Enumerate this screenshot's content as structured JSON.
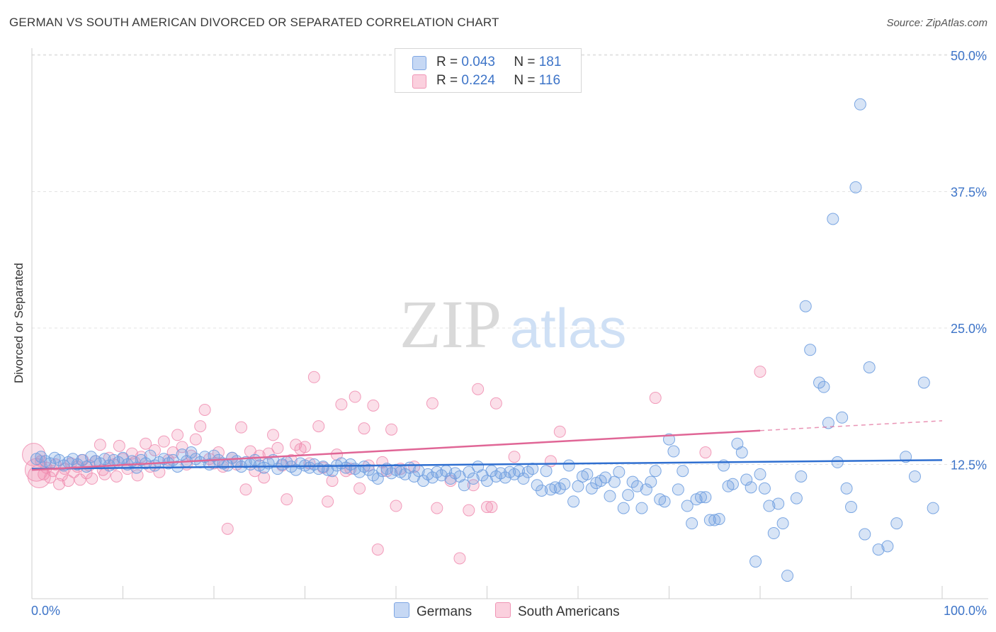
{
  "title": "GERMAN VS SOUTH AMERICAN DIVORCED OR SEPARATED CORRELATION CHART",
  "source": "Source: ZipAtlas.com",
  "watermark": {
    "zip": "ZIP",
    "atlas": "atlas"
  },
  "legend": {
    "germans": {
      "r_label": "R =",
      "r_value": "0.043",
      "n_label": "N =",
      "n_value": "181"
    },
    "south_americans": {
      "r_label": "R =",
      "r_value": "0.224",
      "n_label": "N =",
      "n_value": "116"
    }
  },
  "bottom_legend": {
    "germans": "Germans",
    "south_americans": "South Americans"
  },
  "chart_data": {
    "type": "scatter",
    "ylabel": "Divorced or Separated",
    "x_tick_labels": [
      "0.0%",
      "100.0%"
    ],
    "y_tick_labels": [
      "12.5%",
      "25.0%",
      "37.5%",
      "50.0%"
    ],
    "y_ticks": [
      12.5,
      25.0,
      37.5,
      50.0
    ],
    "xlim": [
      0,
      100
    ],
    "ylim": [
      0,
      50
    ],
    "grid": "horizontal dashed",
    "colors": {
      "germans": "#6f9fe0",
      "germans_line": "#2f6fd0",
      "south_americans": "#f08db0",
      "south_americans_line": "#e06696"
    },
    "series": [
      {
        "name": "Germans",
        "trend": {
          "x0": 0,
          "y0": 12.1,
          "x1": 100,
          "y1": 12.9
        },
        "points": [
          [
            0.5,
            13.0
          ],
          [
            1,
            13.2
          ],
          [
            1.5,
            12.8
          ],
          [
            2,
            12.6
          ],
          [
            2.5,
            13.1
          ],
          [
            3,
            12.9
          ],
          [
            3.5,
            12.4
          ],
          [
            4,
            12.7
          ],
          [
            4.5,
            13.0
          ],
          [
            5,
            12.5
          ],
          [
            5.5,
            12.9
          ],
          [
            6,
            12.3
          ],
          [
            6.5,
            13.2
          ],
          [
            7,
            12.8
          ],
          [
            7.5,
            12.6
          ],
          [
            8,
            13.0
          ],
          [
            8.5,
            12.4
          ],
          [
            9,
            12.9
          ],
          [
            9.5,
            12.7
          ],
          [
            10,
            13.1
          ],
          [
            10.5,
            12.5
          ],
          [
            11,
            12.8
          ],
          [
            11.5,
            12.2
          ],
          [
            12,
            12.9
          ],
          [
            12.5,
            12.6
          ],
          [
            13,
            13.3
          ],
          [
            13.5,
            12.4
          ],
          [
            14,
            12.7
          ],
          [
            14.5,
            13.0
          ],
          [
            15,
            12.6
          ],
          [
            15.5,
            12.9
          ],
          [
            16,
            12.3
          ],
          [
            16.5,
            13.4
          ],
          [
            17,
            12.8
          ],
          [
            17.5,
            13.6
          ],
          [
            18,
            13.0
          ],
          [
            18.5,
            12.7
          ],
          [
            19,
            13.2
          ],
          [
            19.5,
            12.5
          ],
          [
            20,
            13.3
          ],
          [
            20.5,
            12.9
          ],
          [
            21,
            12.6
          ],
          [
            21.5,
            12.4
          ],
          [
            22,
            13.1
          ],
          [
            22.5,
            12.8
          ],
          [
            23,
            12.3
          ],
          [
            23.5,
            12.7
          ],
          [
            24,
            12.5
          ],
          [
            24.5,
            12.9
          ],
          [
            25,
            12.4
          ],
          [
            25.5,
            12.2
          ],
          [
            26,
            12.6
          ],
          [
            26.5,
            12.9
          ],
          [
            27,
            12.1
          ],
          [
            27.5,
            12.5
          ],
          [
            28,
            12.7
          ],
          [
            28.5,
            12.3
          ],
          [
            29,
            12.0
          ],
          [
            29.5,
            12.6
          ],
          [
            30,
            12.4
          ],
          [
            30.5,
            12.2
          ],
          [
            31,
            12.5
          ],
          [
            31.5,
            12.1
          ],
          [
            32,
            12.3
          ],
          [
            32.5,
            12.0
          ],
          [
            33,
            11.9
          ],
          [
            33.5,
            12.4
          ],
          [
            34,
            12.6
          ],
          [
            34.5,
            12.2
          ],
          [
            35,
            12.5
          ],
          [
            35.5,
            12.1
          ],
          [
            36,
            11.8
          ],
          [
            36.5,
            12.3
          ],
          [
            37,
            12.0
          ],
          [
            37.5,
            11.5
          ],
          [
            38,
            11.2
          ],
          [
            38.5,
            11.9
          ],
          [
            39,
            12.1
          ],
          [
            39.5,
            11.7
          ],
          [
            40,
            12.0
          ],
          [
            40.5,
            11.8
          ],
          [
            41,
            11.6
          ],
          [
            41.5,
            12.2
          ],
          [
            42,
            11.4
          ],
          [
            42.5,
            11.9
          ],
          [
            43,
            11.0
          ],
          [
            43.5,
            11.6
          ],
          [
            44,
            11.3
          ],
          [
            44.5,
            11.8
          ],
          [
            45,
            11.5
          ],
          [
            45.5,
            11.9
          ],
          [
            46,
            11.2
          ],
          [
            46.5,
            11.7
          ],
          [
            47,
            11.4
          ],
          [
            47.5,
            10.6
          ],
          [
            48,
            11.8
          ],
          [
            48.5,
            11.2
          ],
          [
            49,
            12.3
          ],
          [
            49.5,
            11.5
          ],
          [
            50,
            11.0
          ],
          [
            50.5,
            11.9
          ],
          [
            51,
            11.4
          ],
          [
            51.5,
            11.7
          ],
          [
            52,
            11.3
          ],
          [
            52.5,
            11.8
          ],
          [
            53,
            11.6
          ],
          [
            53.5,
            11.9
          ],
          [
            54,
            11.2
          ],
          [
            54.5,
            11.8
          ],
          [
            55,
            12.1
          ],
          [
            55.5,
            10.6
          ],
          [
            56,
            10.1
          ],
          [
            56.5,
            11.9
          ],
          [
            57,
            10.2
          ],
          [
            57.5,
            10.4
          ],
          [
            58,
            10.3
          ],
          [
            58.5,
            10.7
          ],
          [
            59,
            12.4
          ],
          [
            59.5,
            9.1
          ],
          [
            60,
            10.5
          ],
          [
            60.5,
            11.4
          ],
          [
            61,
            11.6
          ],
          [
            61.5,
            10.3
          ],
          [
            62,
            10.8
          ],
          [
            62.5,
            11.0
          ],
          [
            63,
            11.3
          ],
          [
            63.5,
            9.6
          ],
          [
            64,
            10.9
          ],
          [
            64.5,
            11.8
          ],
          [
            65,
            8.5
          ],
          [
            65.5,
            9.7
          ],
          [
            66,
            10.9
          ],
          [
            66.5,
            10.5
          ],
          [
            67,
            8.5
          ],
          [
            67.5,
            10.2
          ],
          [
            68,
            10.9
          ],
          [
            68.5,
            11.9
          ],
          [
            69,
            9.3
          ],
          [
            69.5,
            9.1
          ],
          [
            70,
            14.8
          ],
          [
            70.5,
            13.7
          ],
          [
            71,
            10.2
          ],
          [
            71.5,
            11.9
          ],
          [
            72,
            8.7
          ],
          [
            72.5,
            7.1
          ],
          [
            73,
            9.3
          ],
          [
            73.5,
            9.5
          ],
          [
            74,
            9.5
          ],
          [
            74.5,
            7.4
          ],
          [
            75,
            7.4
          ],
          [
            75.5,
            7.5
          ],
          [
            76,
            12.4
          ],
          [
            76.5,
            10.5
          ],
          [
            77,
            10.7
          ],
          [
            77.5,
            14.4
          ],
          [
            78,
            13.6
          ],
          [
            78.5,
            11.1
          ],
          [
            79,
            10.4
          ],
          [
            79.5,
            3.6
          ],
          [
            80,
            11.6
          ],
          [
            80.5,
            10.3
          ],
          [
            81,
            8.7
          ],
          [
            81.5,
            6.2
          ],
          [
            82,
            8.9
          ],
          [
            82.5,
            7.1
          ],
          [
            83,
            2.3
          ],
          [
            84,
            9.4
          ],
          [
            84.5,
            11.4
          ],
          [
            85,
            27.0
          ],
          [
            85.5,
            23.0
          ],
          [
            86.5,
            20.0
          ],
          [
            87,
            19.6
          ],
          [
            87.5,
            16.3
          ],
          [
            88,
            35.0
          ],
          [
            88.5,
            12.7
          ],
          [
            89,
            16.8
          ],
          [
            89.5,
            10.3
          ],
          [
            90,
            8.6
          ],
          [
            90.5,
            37.9
          ],
          [
            91,
            45.5
          ],
          [
            91.5,
            6.1
          ],
          [
            92,
            21.4
          ],
          [
            93,
            4.7
          ],
          [
            94,
            5.0
          ],
          [
            95,
            7.1
          ],
          [
            96,
            13.2
          ],
          [
            97,
            11.4
          ],
          [
            98,
            20.0
          ],
          [
            99,
            8.5
          ]
        ]
      },
      {
        "name": "South Americans",
        "trend": {
          "x0": 0,
          "y0": 12.0,
          "x1": 80,
          "y1": 15.6
        },
        "dashed_extension": {
          "x0": 80,
          "y0": 15.6,
          "x1": 100,
          "y1": 16.5
        },
        "points": [
          [
            0.2,
            13.4
          ],
          [
            0.5,
            12.0
          ],
          [
            0.8,
            11.4
          ],
          [
            1,
            12.8
          ],
          [
            1.3,
            11.6
          ],
          [
            1.6,
            12.2
          ],
          [
            2,
            11.3
          ],
          [
            2.3,
            11.9
          ],
          [
            2.6,
            12.5
          ],
          [
            3,
            10.7
          ],
          [
            3.3,
            11.5
          ],
          [
            3.6,
            12.1
          ],
          [
            4,
            11.0
          ],
          [
            4.3,
            12.6
          ],
          [
            4.6,
            11.8
          ],
          [
            5,
            12.3
          ],
          [
            5.3,
            11.1
          ],
          [
            5.6,
            12.9
          ],
          [
            6,
            11.7
          ],
          [
            6.3,
            12.4
          ],
          [
            6.6,
            11.2
          ],
          [
            7,
            12.8
          ],
          [
            7.5,
            14.3
          ],
          [
            7.8,
            12.0
          ],
          [
            8,
            11.6
          ],
          [
            8.5,
            13.1
          ],
          [
            9,
            12.5
          ],
          [
            9.3,
            11.4
          ],
          [
            9.6,
            14.2
          ],
          [
            10,
            13.0
          ],
          [
            10.5,
            12.1
          ],
          [
            11,
            13.5
          ],
          [
            11.3,
            12.7
          ],
          [
            11.6,
            11.5
          ],
          [
            12,
            13.2
          ],
          [
            12.5,
            14.4
          ],
          [
            13,
            12.3
          ],
          [
            13.5,
            13.8
          ],
          [
            14,
            11.8
          ],
          [
            14.5,
            14.6
          ],
          [
            15,
            12.9
          ],
          [
            15.5,
            13.6
          ],
          [
            16,
            15.2
          ],
          [
            16.5,
            14.1
          ],
          [
            17,
            12.5
          ],
          [
            17.5,
            13.3
          ],
          [
            18,
            14.8
          ],
          [
            18.5,
            16.0
          ],
          [
            19,
            17.5
          ],
          [
            19.5,
            13.0
          ],
          [
            20,
            12.6
          ],
          [
            20.5,
            13.6
          ],
          [
            21,
            12.3
          ],
          [
            21.5,
            6.6
          ],
          [
            22,
            13.1
          ],
          [
            22.5,
            12.5
          ],
          [
            23,
            15.9
          ],
          [
            23.5,
            10.2
          ],
          [
            24,
            13.7
          ],
          [
            24.5,
            11.9
          ],
          [
            25,
            13.3
          ],
          [
            25.5,
            11.3
          ],
          [
            26,
            13.5
          ],
          [
            26.5,
            15.2
          ],
          [
            27,
            14.0
          ],
          [
            27.5,
            12.4
          ],
          [
            28,
            9.3
          ],
          [
            28.5,
            12.9
          ],
          [
            29,
            14.3
          ],
          [
            29.5,
            13.9
          ],
          [
            30,
            14.1
          ],
          [
            30.5,
            12.6
          ],
          [
            31,
            20.5
          ],
          [
            31.5,
            16.0
          ],
          [
            32,
            12.2
          ],
          [
            32.5,
            9.1
          ],
          [
            33,
            11.0
          ],
          [
            33.5,
            13.4
          ],
          [
            34,
            18.0
          ],
          [
            34.5,
            11.9
          ],
          [
            35,
            12.1
          ],
          [
            35.5,
            18.7
          ],
          [
            36,
            10.3
          ],
          [
            36.5,
            15.8
          ],
          [
            37,
            12.4
          ],
          [
            37.5,
            17.9
          ],
          [
            38,
            4.7
          ],
          [
            38.5,
            12.7
          ],
          [
            39,
            11.9
          ],
          [
            39.5,
            15.7
          ],
          [
            40,
            8.7
          ],
          [
            40.5,
            12.1
          ],
          [
            42,
            12.3
          ],
          [
            44,
            18.1
          ],
          [
            44.5,
            8.5
          ],
          [
            46,
            11.0
          ],
          [
            47,
            3.9
          ],
          [
            48,
            8.3
          ],
          [
            48.5,
            10.6
          ],
          [
            49,
            19.4
          ],
          [
            50,
            8.6
          ],
          [
            50.5,
            8.6
          ],
          [
            51,
            18.1
          ],
          [
            53,
            13.2
          ],
          [
            57,
            12.8
          ],
          [
            58,
            15.5
          ],
          [
            68.5,
            18.6
          ],
          [
            74,
            13.6
          ],
          [
            80,
            21.0
          ]
        ]
      }
    ]
  }
}
